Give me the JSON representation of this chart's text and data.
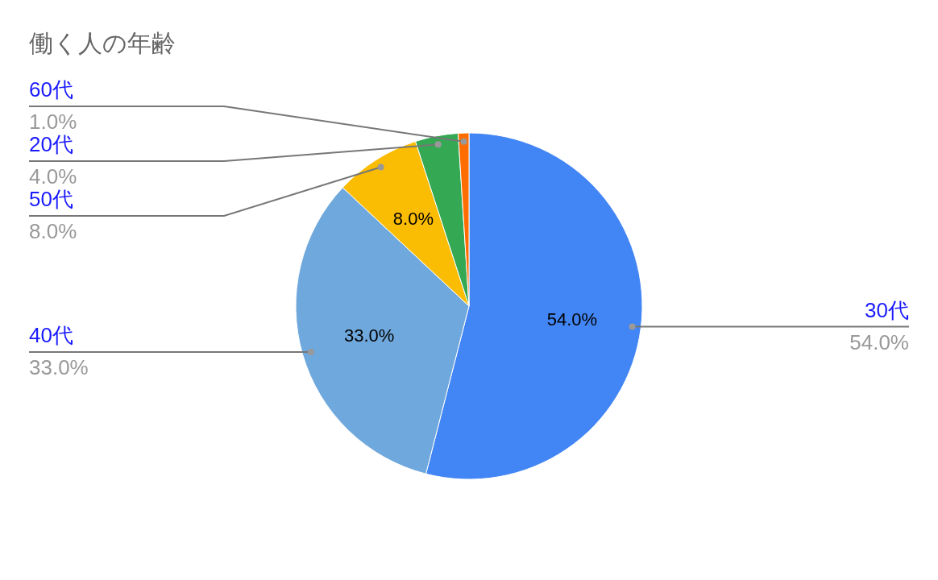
{
  "chart_data": {
    "type": "pie",
    "title": "働く人の年齢",
    "categories": [
      "30代",
      "40代",
      "50代",
      "20代",
      "60代"
    ],
    "values": [
      54,
      33,
      8,
      4,
      1
    ],
    "colors": [
      "#4285f4",
      "#6fa8dc",
      "#fbbc04",
      "#34a853",
      "#ff6d01"
    ],
    "value_labels": [
      "54.0%",
      "33.0%",
      "8.0%",
      "4.0%",
      "1.0%"
    ],
    "legend": false
  }
}
